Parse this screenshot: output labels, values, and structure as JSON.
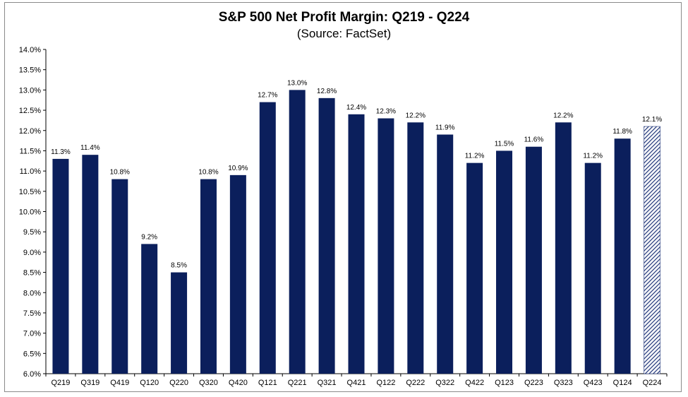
{
  "chart_data": {
    "type": "bar",
    "title": "S&P 500 Net Profit Margin: Q219 - Q224",
    "subtitle": "(Source: FactSet)",
    "xlabel": "",
    "ylabel": "",
    "ylim": [
      6.0,
      14.0
    ],
    "y_ticks": [
      "6.0%",
      "6.5%",
      "7.0%",
      "7.5%",
      "8.0%",
      "8.5%",
      "9.0%",
      "9.5%",
      "10.0%",
      "10.5%",
      "11.0%",
      "11.5%",
      "12.0%",
      "12.5%",
      "13.0%",
      "13.5%",
      "14.0%"
    ],
    "grid": false,
    "legend": "none",
    "categories": [
      "Q219",
      "Q319",
      "Q419",
      "Q120",
      "Q220",
      "Q320",
      "Q420",
      "Q121",
      "Q221",
      "Q321",
      "Q421",
      "Q122",
      "Q222",
      "Q322",
      "Q422",
      "Q123",
      "Q223",
      "Q323",
      "Q423",
      "Q124",
      "Q224"
    ],
    "values": [
      11.3,
      11.4,
      10.8,
      9.2,
      8.5,
      10.8,
      10.9,
      12.7,
      13.0,
      12.8,
      12.4,
      12.3,
      12.2,
      11.9,
      11.2,
      11.5,
      11.6,
      12.2,
      11.2,
      11.8,
      12.1
    ],
    "value_labels": [
      "11.3%",
      "11.4%",
      "10.8%",
      "9.2%",
      "8.5%",
      "10.8%",
      "10.9%",
      "12.7%",
      "13.0%",
      "12.8%",
      "12.4%",
      "12.3%",
      "12.2%",
      "11.9%",
      "11.2%",
      "11.5%",
      "11.6%",
      "12.2%",
      "11.2%",
      "11.8%",
      "12.1%"
    ],
    "hatched": [
      false,
      false,
      false,
      false,
      false,
      false,
      false,
      false,
      false,
      false,
      false,
      false,
      false,
      false,
      false,
      false,
      false,
      false,
      false,
      false,
      true
    ],
    "colors": {
      "bar": "#0b1f5c",
      "hatch": "#1f3478",
      "axis": "#000000"
    }
  }
}
